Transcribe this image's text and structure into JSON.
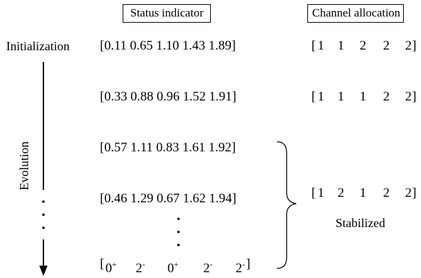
{
  "headers": {
    "status": "Status indicator",
    "channel": "Channel allocation"
  },
  "labels": {
    "init": "Initialization",
    "evolution": "Evolution",
    "stabilized": "Stabilized"
  },
  "status_rows": [
    "[0.11 0.65 1.10 1.43 1.89]",
    "[0.33 0.88 0.96 1.52 1.91]",
    "[0.57 1.11 0.83 1.61 1.92]",
    "[0.46 1.29 0.67 1.62 1.94]"
  ],
  "final_status": {
    "open": "[",
    "items": [
      "0",
      "2",
      "0",
      "2",
      "2"
    ],
    "marks": [
      "+",
      "-",
      "+",
      "-",
      "-"
    ],
    "close": "]"
  },
  "channel_rows": [
    {
      "open": "[",
      "items": [
        "1",
        "1",
        "2",
        "2",
        "2"
      ],
      "close": "]"
    },
    {
      "open": "[",
      "items": [
        "1",
        "1",
        "1",
        "2",
        "2"
      ],
      "close": "]"
    },
    {
      "open": "[",
      "items": [
        "1",
        "2",
        "1",
        "2",
        "2"
      ],
      "close": "]"
    }
  ]
}
